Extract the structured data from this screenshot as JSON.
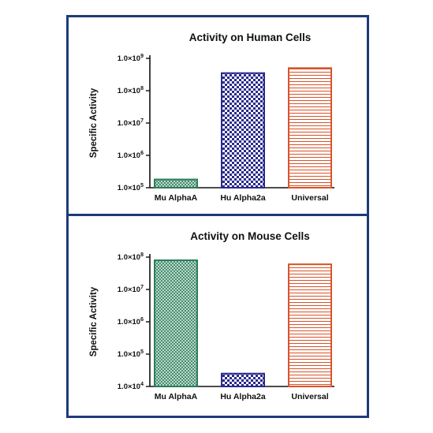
{
  "colors": {
    "frame": "#1f3a7a",
    "mu_alpha_a": "#2e7d5b",
    "hu_alpha2a": "#2a2a8c",
    "universal": "#d9542b"
  },
  "chart_data": [
    {
      "type": "bar",
      "title": "Activity on Human Cells",
      "xlabel": "",
      "ylabel": "Specific Activity",
      "yscale": "log",
      "ylim": [
        100000,
        1000000000
      ],
      "yticks": [
        100000,
        1000000,
        10000000,
        100000000,
        1000000000
      ],
      "ytick_labels": [
        {
          "mant": "1.0×10",
          "exp": "5"
        },
        {
          "mant": "1.0×10",
          "exp": "6"
        },
        {
          "mant": "1.0×10",
          "exp": "7"
        },
        {
          "mant": "1.0×10",
          "exp": "8"
        },
        {
          "mant": "1.0×10",
          "exp": "9"
        }
      ],
      "categories": [
        "Mu AlphaA",
        "Hu Alpha2a",
        "Universal"
      ],
      "values": [
        180000,
        350000000,
        500000000
      ],
      "patterns": [
        "hatch",
        "checker",
        "hstripe"
      ],
      "grid": false
    },
    {
      "type": "bar",
      "title": "Activity on Mouse Cells",
      "xlabel": "",
      "ylabel": "Specific Activity",
      "yscale": "log",
      "ylim": [
        10000,
        100000000
      ],
      "yticks": [
        10000,
        100000,
        1000000,
        10000000,
        100000000
      ],
      "ytick_labels": [
        {
          "mant": "1.0×10",
          "exp": "4"
        },
        {
          "mant": "1.0×10",
          "exp": "5"
        },
        {
          "mant": "1.0×10",
          "exp": "6"
        },
        {
          "mant": "1.0×10",
          "exp": "7"
        },
        {
          "mant": "1.0×10",
          "exp": "8"
        }
      ],
      "categories": [
        "Mu AlphaA",
        "Hu Alpha2a",
        "Universal"
      ],
      "values": [
        80000000,
        25000,
        60000000
      ],
      "patterns": [
        "hatch",
        "checker",
        "hstripe"
      ],
      "grid": false
    }
  ]
}
